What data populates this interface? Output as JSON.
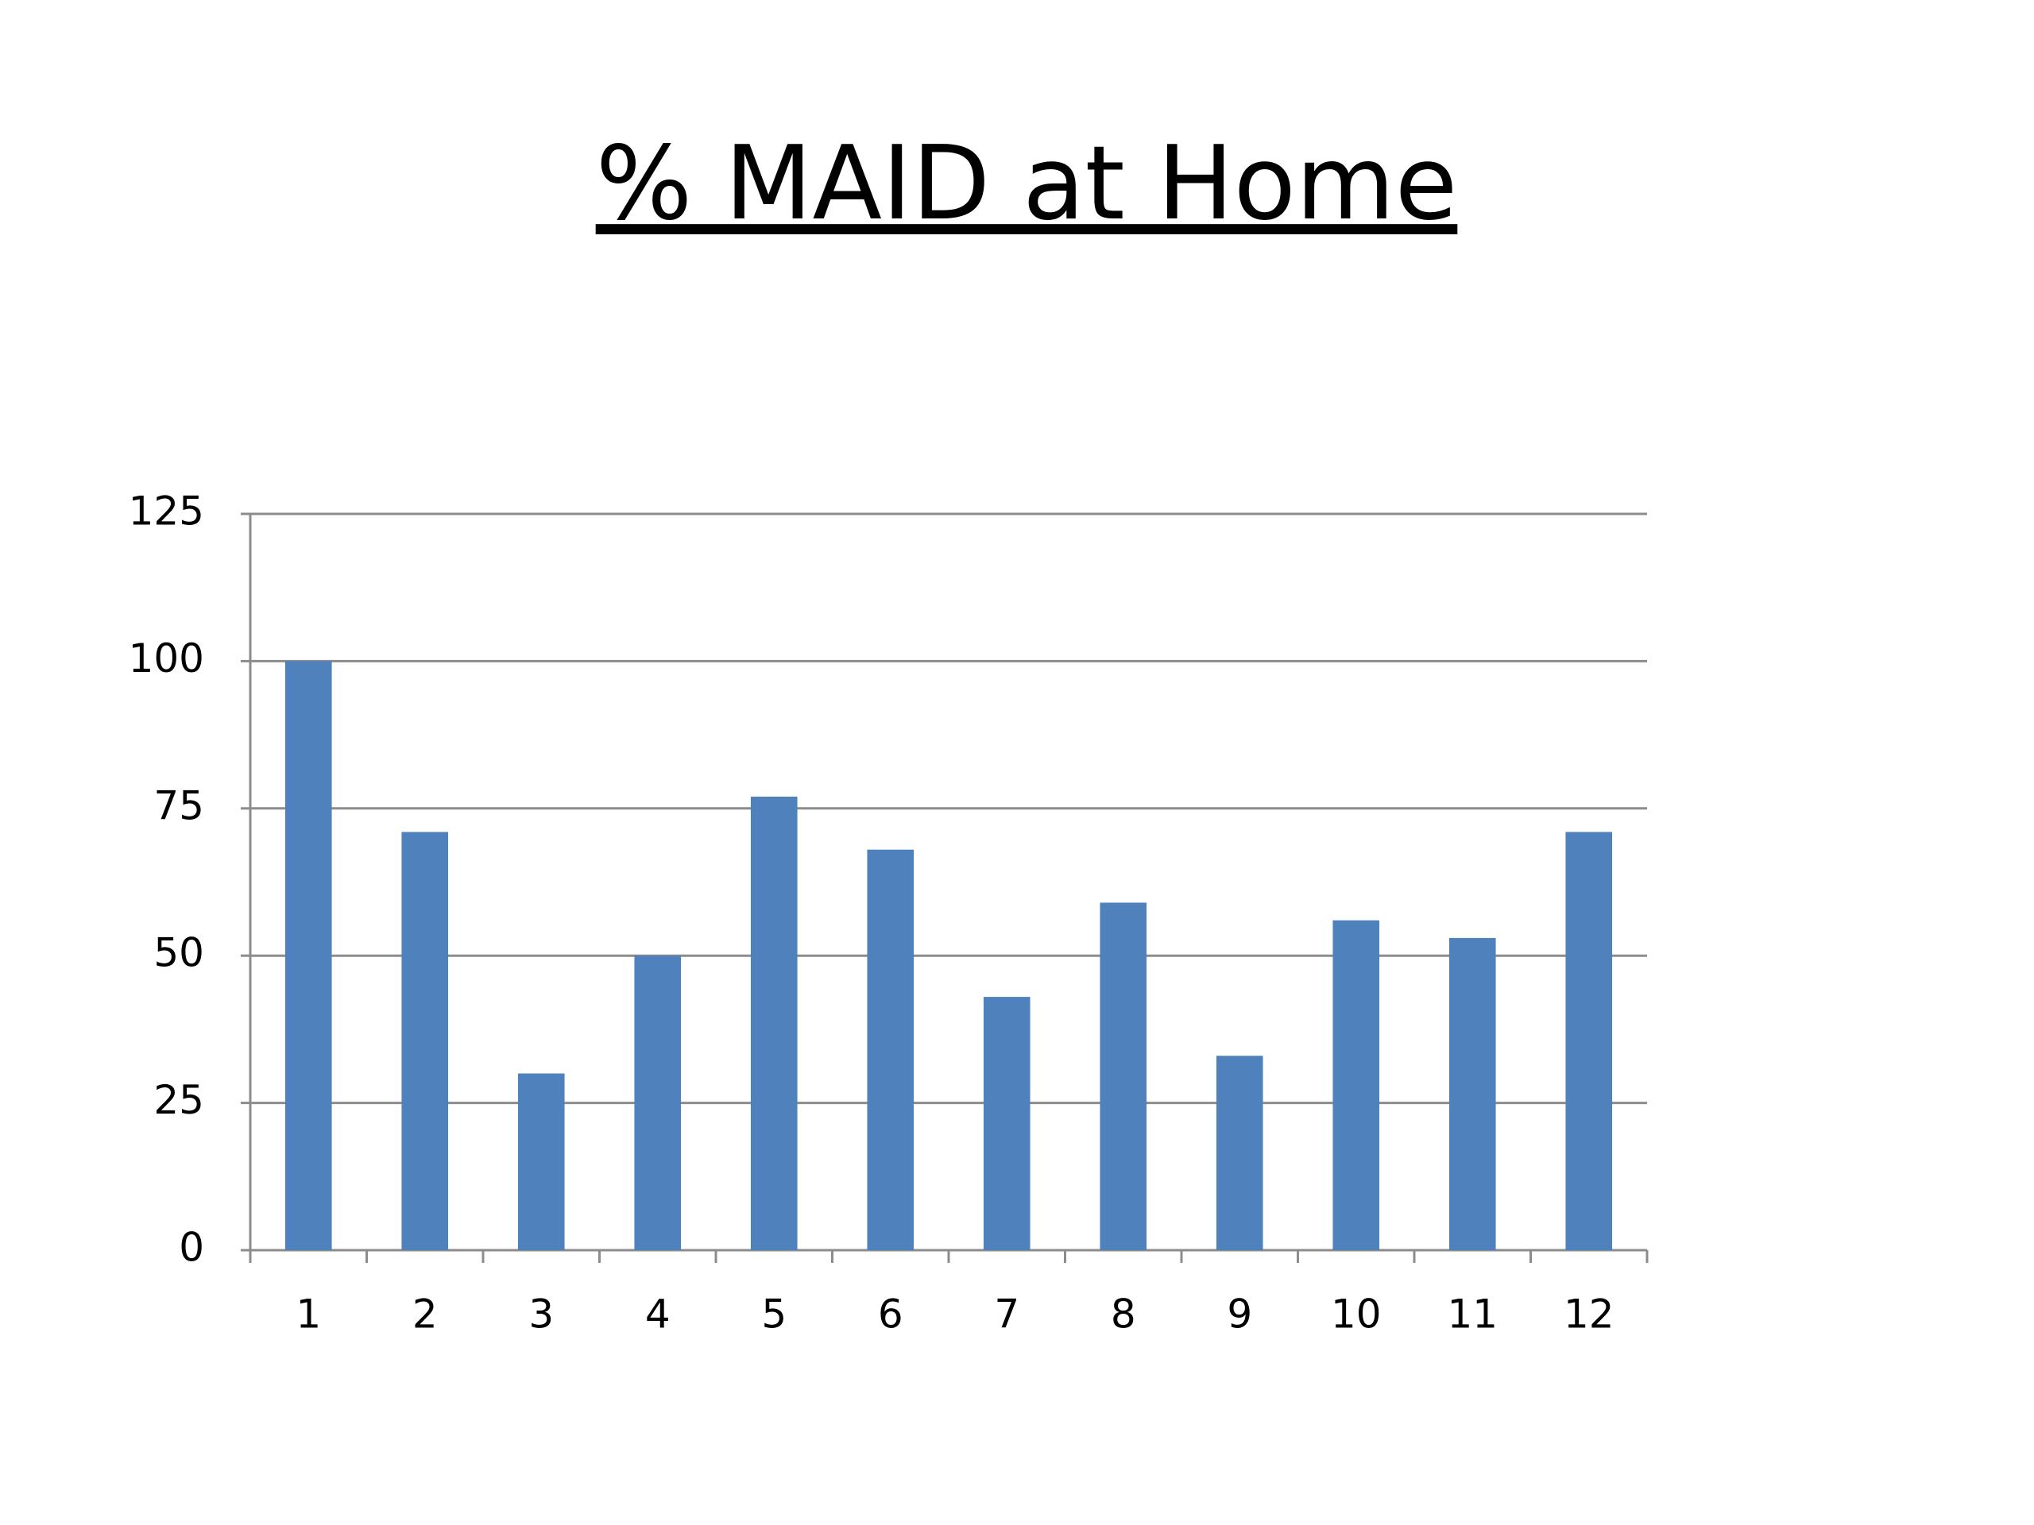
{
  "chart_data": {
    "type": "bar",
    "title": "% MAID at Home",
    "categories": [
      "1",
      "2",
      "3",
      "4",
      "5",
      "6",
      "7",
      "8",
      "9",
      "10",
      "11",
      "12"
    ],
    "values": [
      100,
      71,
      30,
      50,
      77,
      68,
      43,
      59,
      33,
      56,
      53,
      71
    ],
    "color": "#4f81bd",
    "ylim": [
      0,
      125
    ],
    "yticks": [
      0,
      25,
      50,
      75,
      100,
      125
    ],
    "grid": true
  }
}
